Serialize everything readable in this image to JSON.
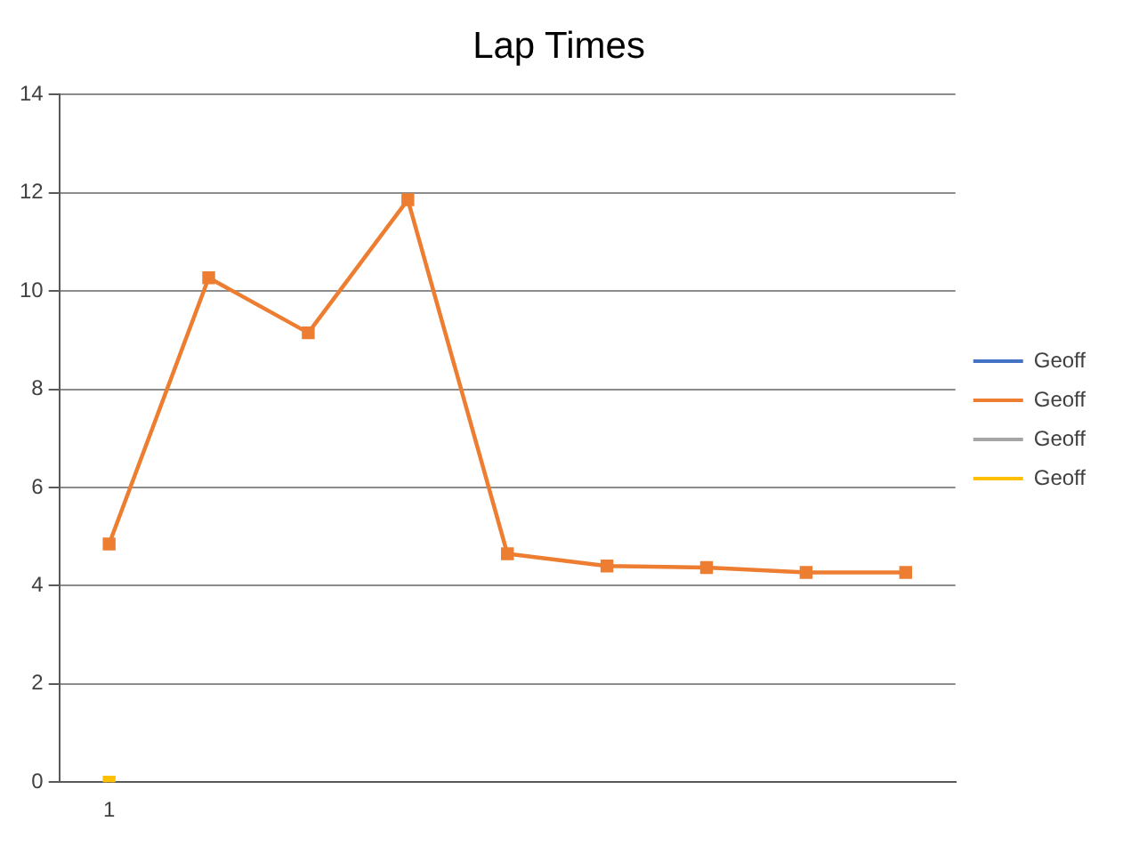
{
  "chart_data": {
    "type": "line",
    "title": "Lap Times",
    "categories": [
      "1",
      null,
      null,
      null,
      null,
      null,
      null,
      null,
      null
    ],
    "series": [
      {
        "name": "Geoff",
        "color": "#4472c4",
        "values": [
          null,
          null,
          null,
          null,
          null,
          null,
          null,
          null,
          null
        ]
      },
      {
        "name": "Geoff",
        "color": "#ed7d31",
        "values": [
          4.85,
          10.27,
          9.15,
          11.86,
          4.65,
          4.4,
          4.37,
          4.27,
          4.27
        ]
      },
      {
        "name": "Geoff",
        "color": "#a5a5a5",
        "values": [
          null,
          null,
          null,
          null,
          null,
          null,
          null,
          null,
          null
        ]
      },
      {
        "name": "Geoff",
        "color": "#ffc000",
        "values": [
          0,
          null,
          null,
          null,
          null,
          null,
          null,
          null,
          null
        ]
      }
    ],
    "ylim": [
      0,
      14
    ],
    "yticks": [
      0,
      2,
      4,
      6,
      8,
      10,
      12,
      14
    ],
    "grid": "y",
    "legend": "right",
    "marker": "square",
    "line_style": "solid"
  }
}
